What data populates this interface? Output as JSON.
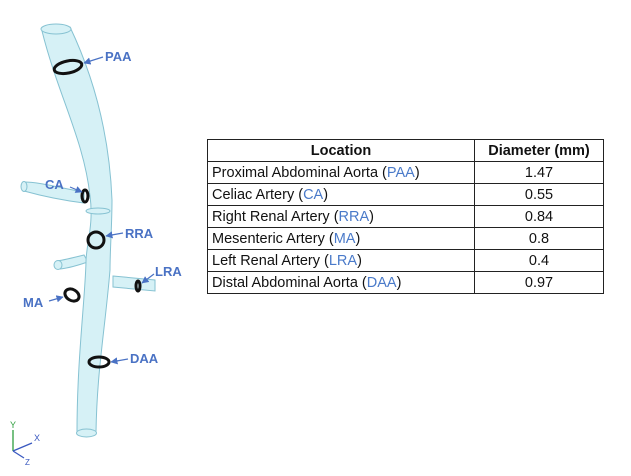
{
  "colors": {
    "vessel_fill": "#d6f1f6",
    "vessel_stroke": "#86c2d2",
    "label_blue": "#4a72c4",
    "ring": "#111111",
    "axis_green": "#2e9e3e",
    "axis_blue": "#3a59c0"
  },
  "diagram": {
    "labels": {
      "paa": "PAA",
      "ca": "CA",
      "rra": "RRA",
      "lra": "LRA",
      "ma": "MA",
      "daa": "DAA"
    },
    "axes": {
      "y": "Y",
      "x": "X",
      "z": "Z"
    }
  },
  "table": {
    "headers": [
      "Location",
      "Diameter (mm)"
    ],
    "rows": [
      {
        "name": "Proximal Abdominal Aorta",
        "abbr": "PAA",
        "diameter": "1.47"
      },
      {
        "name": "Celiac Artery",
        "abbr": "CA",
        "diameter": "0.55"
      },
      {
        "name": "Right Renal Artery",
        "abbr": "RRA",
        "diameter": "0.84"
      },
      {
        "name": "Mesenteric Artery",
        "abbr": "MA",
        "diameter": "0.8"
      },
      {
        "name": "Left Renal Artery",
        "abbr": "LRA",
        "diameter": "0.4"
      },
      {
        "name": "Distal Abdominal Aorta",
        "abbr": "DAA",
        "diameter": "0.97"
      }
    ]
  }
}
